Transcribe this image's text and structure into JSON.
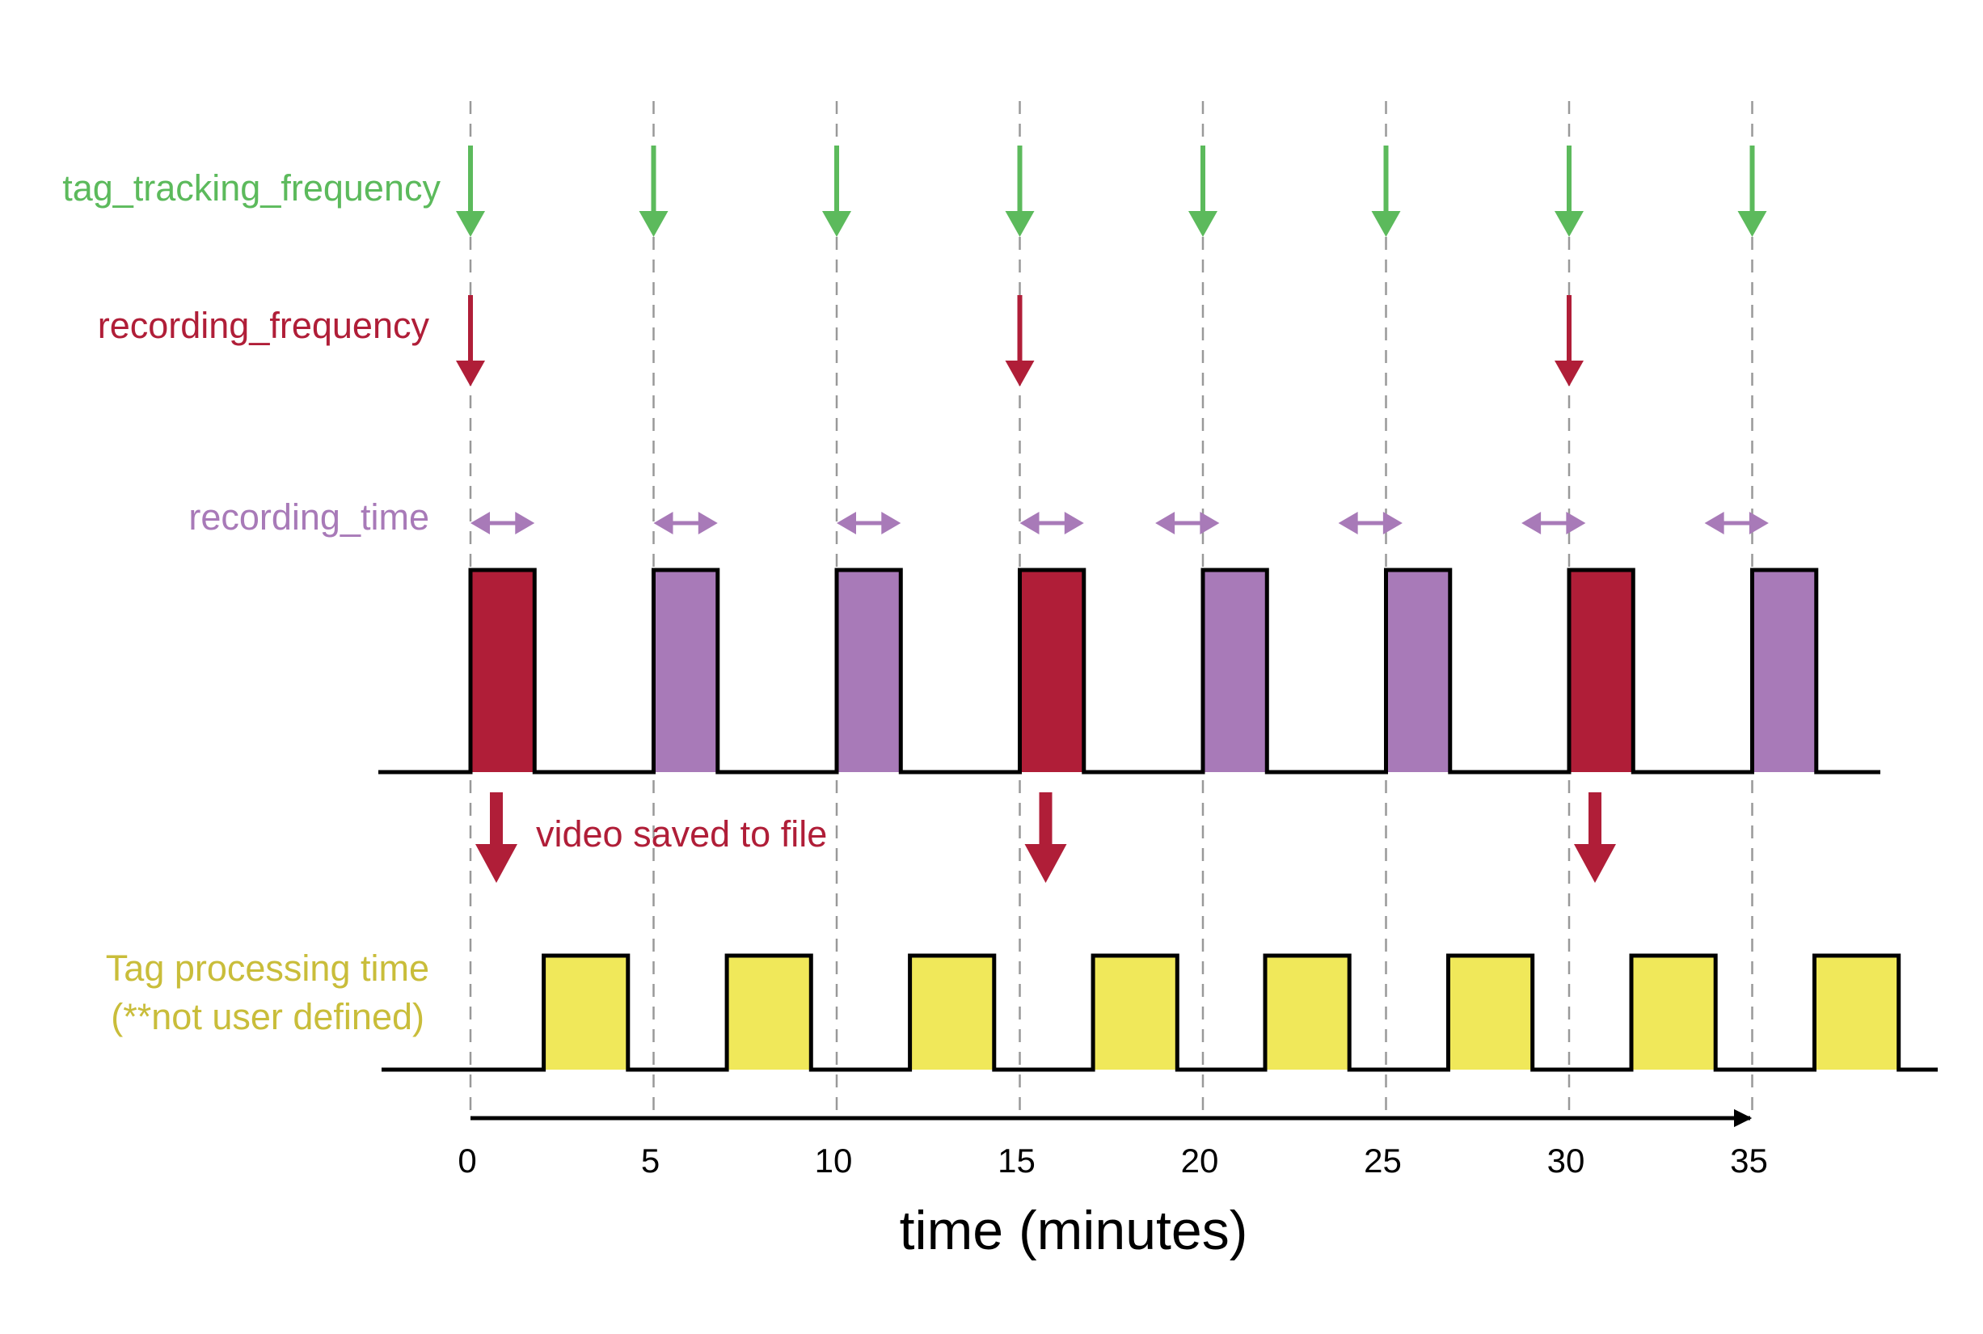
{
  "colors": {
    "tracking": "#5cba5c",
    "recording": "#b01e38",
    "rec_time": "#a87ab8",
    "processing": "#c9bd3a",
    "processing_fill": "#f0e85a",
    "axis": "#000000",
    "gridline": "#999999"
  },
  "labels": {
    "tracking": "tag_tracking_frequency",
    "recording_frequency": "recording_frequency",
    "recording_time": "recording_time",
    "video_saved": "video saved to file",
    "processing_line1": "Tag processing time",
    "processing_line2": "(**not user defined)",
    "axis_title": "time (minutes)"
  },
  "ticks": [
    "0",
    "5",
    "10",
    "15",
    "20",
    "25",
    "30",
    "35"
  ],
  "schedule": {
    "tracking_times": [
      0,
      5,
      10,
      15,
      20,
      25,
      30,
      35
    ],
    "recording_times": [
      0,
      15,
      30
    ],
    "recording_time_minutes": 1.75,
    "pulses": [
      {
        "start": 0,
        "type": "recording"
      },
      {
        "start": 5,
        "type": "tracking"
      },
      {
        "start": 10,
        "type": "tracking"
      },
      {
        "start": 15,
        "type": "recording"
      },
      {
        "start": 20,
        "type": "tracking"
      },
      {
        "start": 25,
        "type": "tracking"
      },
      {
        "start": 30,
        "type": "recording"
      },
      {
        "start": 35,
        "type": "tracking"
      }
    ],
    "processing": [
      {
        "start": 2,
        "end": 4.3
      },
      {
        "start": 7,
        "end": 9.3
      },
      {
        "start": 12,
        "end": 14.3
      },
      {
        "start": 17,
        "end": 19.3
      },
      {
        "start": 21.7,
        "end": 24
      },
      {
        "start": 26.7,
        "end": 29
      },
      {
        "start": 31.7,
        "end": 34
      },
      {
        "start": 36.7,
        "end": 39
      }
    ]
  }
}
